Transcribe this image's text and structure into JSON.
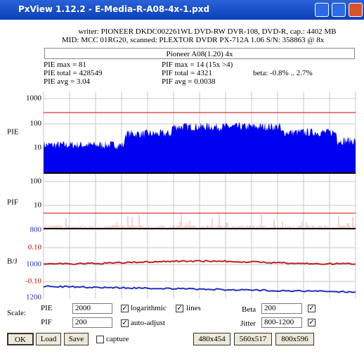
{
  "window": {
    "title": "PxView 1.12.2  -  E-Media-R-A08-4x-1.pxd"
  },
  "info": {
    "writer": "writer: PIONEER DKDC002261WL DVD-RW DVR-108, DVD-R, cap.: 4402 MB",
    "mid": "MID: MCC 01RG20, scanned: PLEXTOR DVDR PX-712A 1.06 S/N: 358863 @ 8x",
    "label": "Pioneer A08(1.20) 4x"
  },
  "stats": {
    "pie_max": "PIE max = 81",
    "pie_total": "PIE total = 428549",
    "pie_avg": "PIE avg = 3.04",
    "pif_max": "PIF max = 14 (15x >4)",
    "pif_total": "PIF total = 4321",
    "pif_avg": "PIF avg = 0.0038",
    "beta": "beta: -0.8% .. 2.7%"
  },
  "panels": {
    "pie": {
      "label": "PIE",
      "ticks": [
        "1000",
        "100",
        "10"
      ]
    },
    "pif": {
      "label": "PIF",
      "ticks": [
        "100",
        "10"
      ]
    },
    "bj": {
      "label": "B/J",
      "ticks": [
        "800",
        "0.10",
        "1000",
        "-0.10",
        "1200"
      ]
    }
  },
  "controls": {
    "scale": "Scale:",
    "pie": "PIE",
    "pie_value": "2000",
    "logarithmic": "logarithmic",
    "lines": "lines",
    "pif": "PIF",
    "pif_value": "200",
    "auto_adjust": "auto-adjust",
    "beta": "Beta",
    "beta_value": "200",
    "jitter": "Jitter",
    "jitter_value": "800-1200"
  },
  "buttons": {
    "ok": "OK",
    "load": "Load",
    "save": "Save",
    "capture": "capture",
    "size1": "480x454",
    "size2": "560x517",
    "size3": "800x596"
  }
}
